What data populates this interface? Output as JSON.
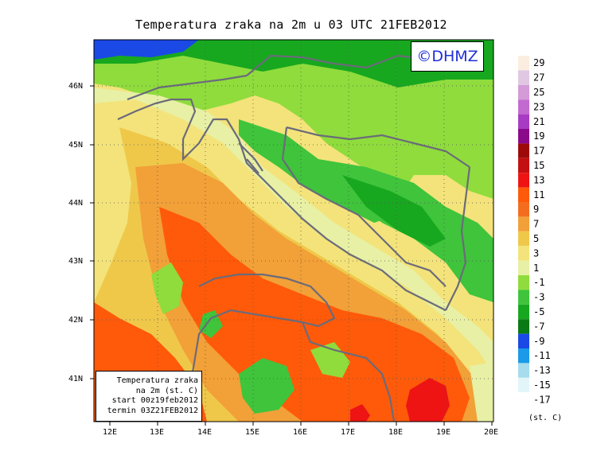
{
  "title": "Temperatura zraka na 2m u 03 UTC 21FEB2012",
  "logo": "©DHMZ",
  "info": {
    "line1": "Temperatura zraka",
    "line2": "na 2m (st. C)",
    "line3": "start 00z19feb2012",
    "line4": "termin 03Z21FEB2012"
  },
  "axes": {
    "x_ticks": [
      "12E",
      "13E",
      "14E",
      "15E",
      "16E",
      "17E",
      "18E",
      "19E",
      "20E"
    ],
    "y_ticks": [
      "46N",
      "45N",
      "44N",
      "43N",
      "42N",
      "41N"
    ]
  },
  "legend": {
    "unit": "(st. C)",
    "levels": [
      "29",
      "27",
      "25",
      "23",
      "21",
      "19",
      "17",
      "15",
      "13",
      "11",
      "9",
      "7",
      "5",
      "3",
      "1",
      "-1",
      "-3",
      "-5",
      "-7",
      "-9",
      "-11",
      "-13",
      "-15",
      "-17"
    ],
    "colors": [
      "#fbeee0",
      "#e0c8e2",
      "#d49bd8",
      "#c36ad0",
      "#a73cc2",
      "#8a0a8a",
      "#9e0a0a",
      "#c41010",
      "#ee1414",
      "#ff5a0a",
      "#f46d1e",
      "#f2a038",
      "#efc84a",
      "#f3e37a",
      "#e7f0a4",
      "#8fdc3c",
      "#3fc43c",
      "#17a81f",
      "#0a7a14",
      "#1a49e6",
      "#1a9ae8",
      "#a6dcec",
      "#e2f6fa",
      "#ffffff"
    ]
  }
}
